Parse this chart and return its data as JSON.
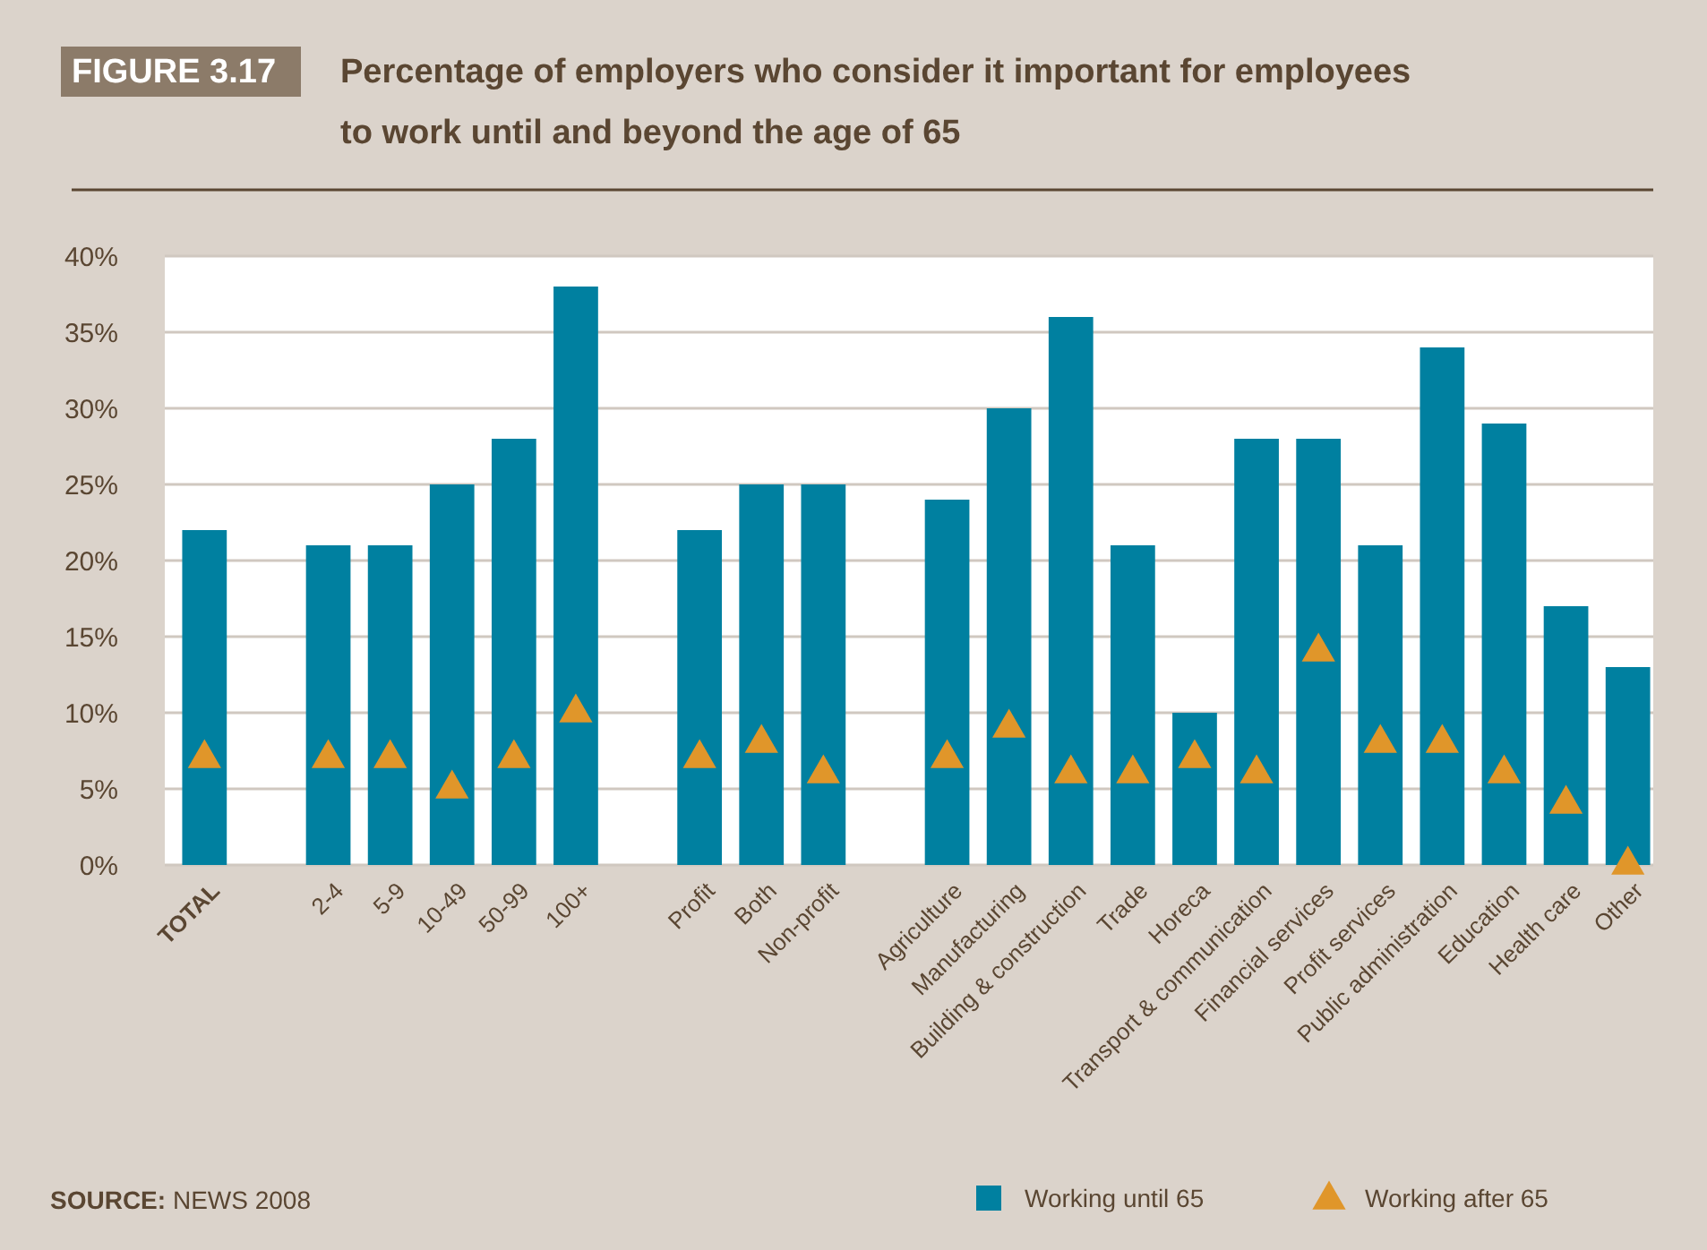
{
  "chart_data": {
    "type": "bar",
    "title": "Percentage of employers who consider it important for employees to work until and beyond the age of 65",
    "categories": [
      "TOTAL",
      null,
      "2-4",
      "5-9",
      "10-49",
      "50-99",
      "100+",
      null,
      "Profit",
      "Both",
      "Non-profit",
      null,
      "Agriculture",
      "Manufacturing",
      "Building & construction",
      "Trade",
      "Horeca",
      "Transport & communication",
      "Financial services",
      "Profit services",
      "Public administration",
      "Education",
      "Health care",
      "Other"
    ],
    "series": [
      {
        "name": "Working until 65",
        "color": "#0080a0",
        "values": [
          22,
          null,
          21,
          21,
          25,
          28,
          38,
          null,
          22,
          25,
          25,
          null,
          24,
          30,
          36,
          21,
          10,
          28,
          28,
          21,
          34,
          29,
          17,
          13
        ]
      },
      {
        "name": "Working after 65",
        "type": "scatter",
        "marker": "triangle",
        "color": "#e0962a",
        "values": [
          7,
          null,
          7,
          7,
          5,
          7,
          10,
          null,
          7,
          8,
          6,
          null,
          7,
          9,
          6,
          6,
          7,
          6,
          14,
          8,
          8,
          6,
          4,
          0
        ]
      }
    ],
    "ylim": [
      0,
      40
    ],
    "yticks": [
      {
        "value": 0,
        "label": "0%"
      },
      {
        "value": 5,
        "label": "5%"
      },
      {
        "value": 10,
        "label": "10%"
      },
      {
        "value": 15,
        "label": "15%"
      },
      {
        "value": 20,
        "label": "20%"
      },
      {
        "value": 25,
        "label": "25%"
      },
      {
        "value": 30,
        "label": "30%"
      },
      {
        "value": 35,
        "label": "35%"
      },
      {
        "value": 40,
        "label": "40%"
      }
    ],
    "grid": "y",
    "legend": "bottom right",
    "annotations": [
      "FIGURE 3.17",
      "SOURCE: NEWS 2008"
    ]
  }
}
